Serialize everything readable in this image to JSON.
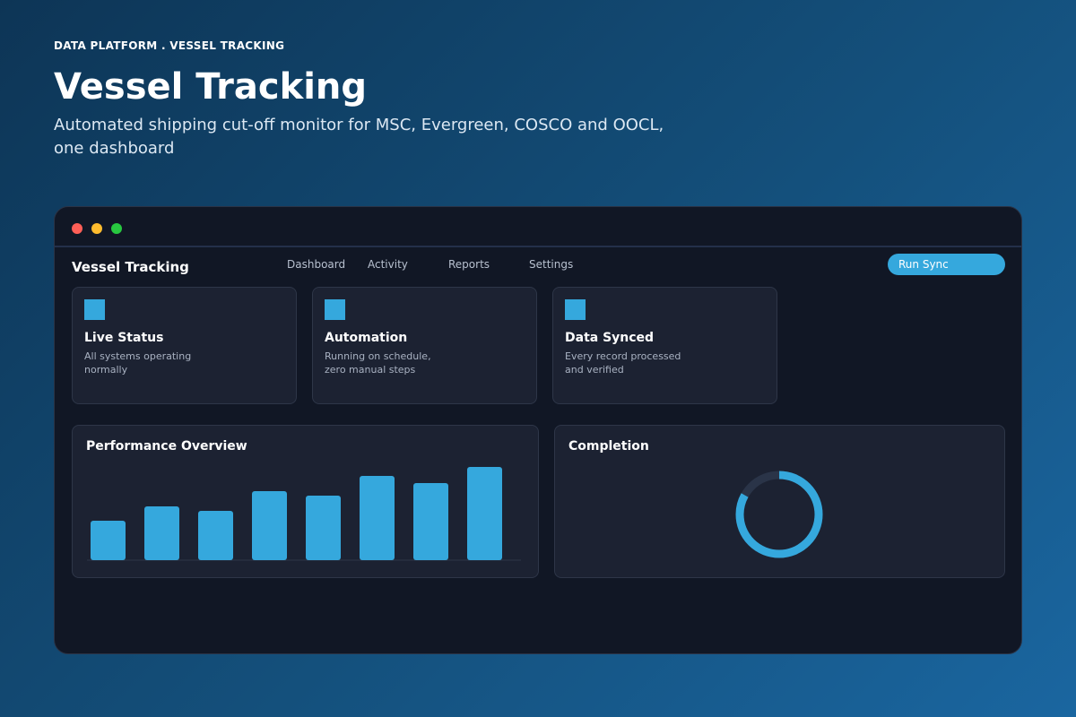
{
  "header": {
    "eyebrow": "DATA PLATFORM . VESSEL TRACKING",
    "title": "Vessel Tracking",
    "subtitle": "Automated shipping cut-off monitor for MSC, Evergreen, COSCO and OOCL, one dashboard"
  },
  "app": {
    "brand": "Vessel Tracking",
    "nav": [
      "Dashboard",
      "Activity",
      "Reports",
      "Settings"
    ],
    "button": "Run Sync"
  },
  "cards": [
    {
      "title": "Live Status",
      "text": "All systems operating normally"
    },
    {
      "title": "Automation",
      "text": "Running on schedule, zero manual steps"
    },
    {
      "title": "Data Synced",
      "text": "Every record processed and verified"
    }
  ],
  "chart_data": [
    {
      "type": "bar",
      "title": "Performance Overview",
      "values": [
        44,
        60,
        55,
        77,
        72,
        94,
        86,
        104
      ],
      "color": "#35a8dd"
    },
    {
      "type": "donut",
      "title": "Completion",
      "values": [
        83
      ],
      "color": "#35a8dd"
    }
  ]
}
